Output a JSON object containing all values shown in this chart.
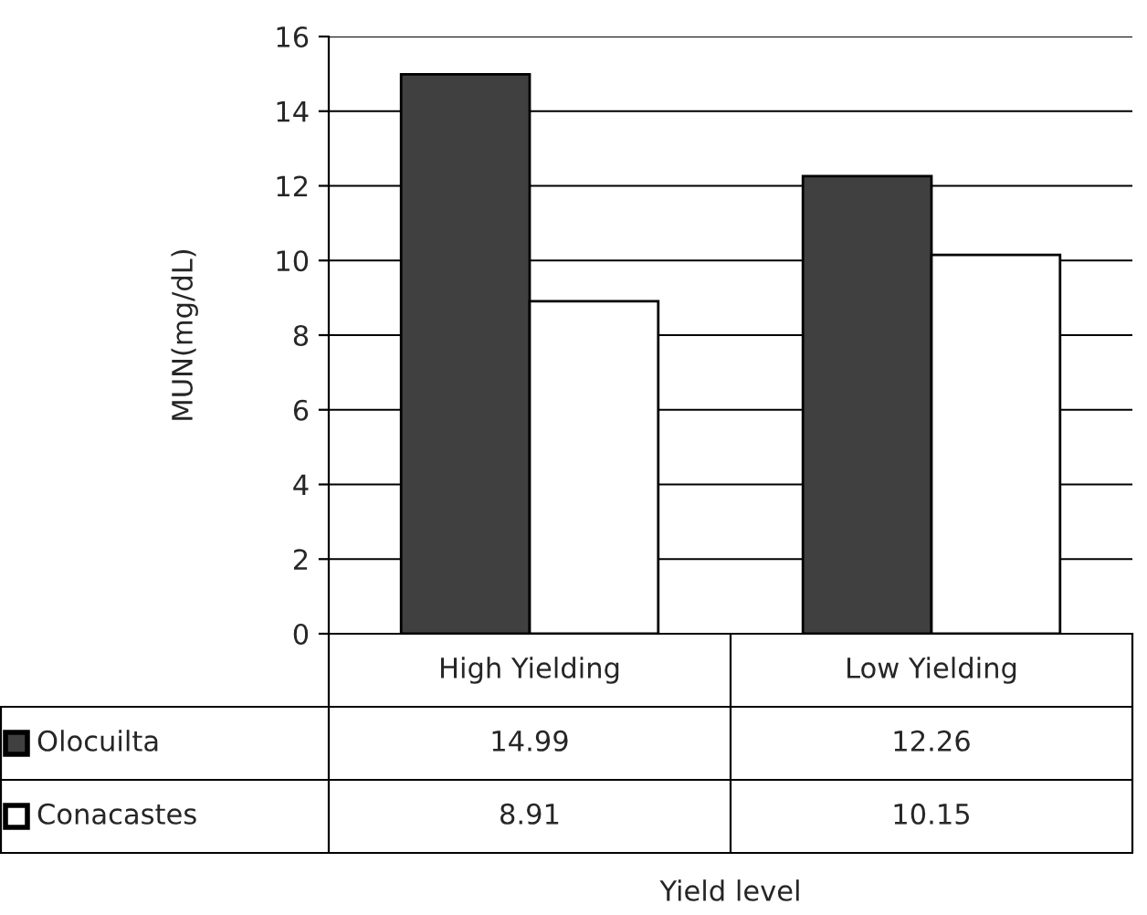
{
  "chart_data": {
    "type": "bar",
    "annotations": [
      "Yield level"
    ],
    "ylabel": "MUN(mg/dL)",
    "categories": [
      "High Yielding",
      "Low Yielding"
    ],
    "series": [
      {
        "name": "Olocuilta",
        "color": "#404040",
        "values": [
          14.99,
          12.26
        ]
      },
      {
        "name": "Conacastes",
        "color": "#ffffff",
        "values": [
          8.91,
          10.15
        ]
      }
    ],
    "ylim": [
      0,
      16
    ],
    "yticks": [
      0,
      2,
      4,
      6,
      8,
      10,
      12,
      14,
      16
    ],
    "grid": "y",
    "data_labels": true,
    "legend": "bottom left"
  }
}
